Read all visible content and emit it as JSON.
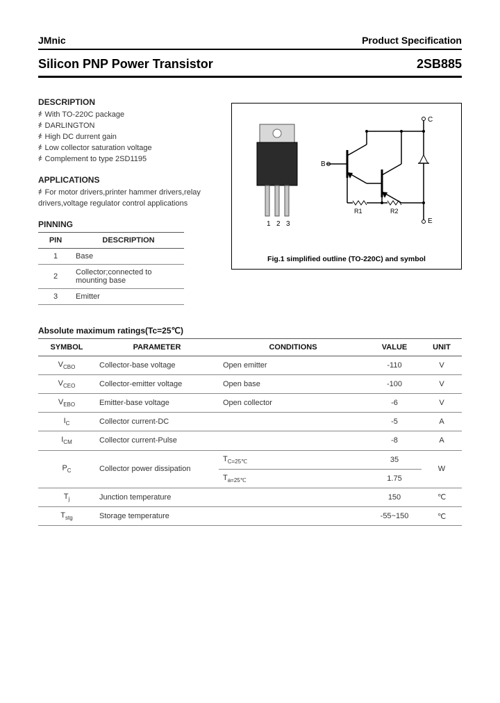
{
  "header": {
    "brand": "JMnic",
    "ps_label": "Product Specification"
  },
  "title": {
    "left": "Silicon PNP Power Transistor",
    "right": "2SB885"
  },
  "description": {
    "heading": "DESCRIPTION",
    "items": [
      "With TO-220C package",
      "DARLINGTON",
      "High DC durrent gain",
      "Low collector saturation voltage",
      "Complement to type 2SD1195"
    ]
  },
  "applications": {
    "heading": "APPLICATIONS",
    "items": [
      "For motor drivers,printer hammer drivers,relay drivers,voltage regulator control applications"
    ]
  },
  "pinning": {
    "heading": "PINNING",
    "col_pin": "PIN",
    "col_desc": "DESCRIPTION",
    "rows": [
      {
        "pin": "1",
        "desc": "Base"
      },
      {
        "pin": "2",
        "desc": "Collector;connected to mounting base"
      },
      {
        "pin": "3",
        "desc": "Emitter"
      }
    ]
  },
  "figure": {
    "caption": "Fig.1 simplified outline (TO-220C) and symbol",
    "pins_label": "1  2  3",
    "labels": {
      "B": "B",
      "C": "C",
      "E": "E",
      "R1": "R1",
      "R2": "R2"
    }
  },
  "ratings": {
    "heading": "Absolute maximum ratings(Tc=25℃)",
    "columns": [
      "SYMBOL",
      "PARAMETER",
      "CONDITIONS",
      "VALUE",
      "UNIT"
    ],
    "rows": [
      {
        "symbol": "V_CBO",
        "parameter": "Collector-base voltage",
        "conditions": "Open emitter",
        "value": "-110",
        "unit": "V"
      },
      {
        "symbol": "V_CEO",
        "parameter": "Collector-emitter voltage",
        "conditions": "Open base",
        "value": "-100",
        "unit": "V"
      },
      {
        "symbol": "V_EBO",
        "parameter": "Emitter-base voltage",
        "conditions": "Open collector",
        "value": "-6",
        "unit": "V"
      },
      {
        "symbol": "I_C",
        "parameter": "Collector current-DC",
        "conditions": "",
        "value": "-5",
        "unit": "A"
      },
      {
        "symbol": "I_CM",
        "parameter": "Collector current-Pulse",
        "conditions": "",
        "value": "-8",
        "unit": "A"
      },
      {
        "symbol": "P_C",
        "parameter": "Collector power dissipation",
        "conditions_multi": [
          "T_C=25℃",
          "T_a=25℃"
        ],
        "value_multi": [
          "35",
          "1.75"
        ],
        "unit": "W"
      },
      {
        "symbol": "T_j",
        "parameter": "Junction temperature",
        "conditions": "",
        "value": "150",
        "unit": "℃"
      },
      {
        "symbol": "T_stg",
        "parameter": "Storage temperature",
        "conditions": "",
        "value": "-55~150",
        "unit": "℃"
      }
    ]
  },
  "styling": {
    "border_color": "#000000",
    "text_color": "#333333",
    "font_sizes": {
      "h": 18,
      "section": 12,
      "body": 11,
      "caption": 10.5
    }
  }
}
